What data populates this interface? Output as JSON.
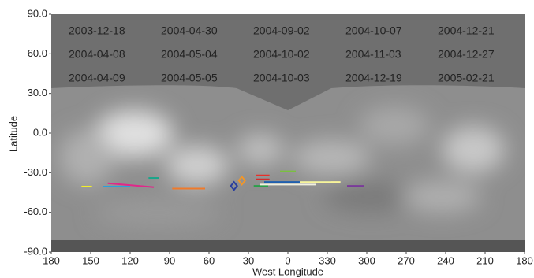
{
  "chart_data": {
    "type": "line",
    "xlabel": "West Longitude",
    "ylabel": "Latitude",
    "xlim": [
      180,
      -180
    ],
    "xticks": [
      180,
      150,
      120,
      90,
      60,
      30,
      0,
      {
        "value": -30,
        "label": "330"
      },
      {
        "value": -60,
        "label": "300"
      },
      {
        "value": -90,
        "label": "270"
      },
      {
        "value": -120,
        "label": "240"
      },
      {
        "value": -150,
        "label": "210"
      },
      {
        "value": -180,
        "label": "180"
      }
    ],
    "ylim": [
      -90,
      90
    ],
    "yticks": [
      {
        "value": -90,
        "label": "-90.0"
      },
      {
        "value": -60,
        "label": "-60.0"
      },
      {
        "value": -30,
        "label": "-30.0"
      },
      {
        "value": 0,
        "label": "0.0"
      },
      {
        "value": 30,
        "label": "30.0"
      },
      {
        "value": 60,
        "label": "60.0"
      },
      {
        "value": 90,
        "label": "90.0"
      }
    ],
    "series": [
      {
        "name": "2003-12-18",
        "color": "#d42a2a",
        "x": [
          24,
          14
        ],
        "values": [
          -35,
          -35
        ]
      },
      {
        "name": "2004-04-30",
        "color": "#f2ee2a",
        "x": [
          157,
          149
        ],
        "values": [
          -40.5,
          -40.5
        ]
      },
      {
        "name": "2004-09-02",
        "color": "#f07a2a",
        "x": [
          88,
          63
        ],
        "values": [
          -42,
          -42
        ]
      },
      {
        "name": "2004-10-07",
        "color": "#1aa58a",
        "x": [
          106,
          98
        ],
        "values": [
          -34,
          -34
        ]
      },
      {
        "name": "2004-12-21",
        "color": "#1f5fae",
        "x": [
          18,
          -33
        ],
        "values": [
          -37,
          -37
        ]
      },
      {
        "name": "2004-04-08",
        "color": "#2aa04a",
        "x": [
          26,
          15
        ],
        "values": [
          -40,
          -40
        ]
      },
      {
        "name": "2004-05-04",
        "color": "#e0288a",
        "x": [
          137,
          102
        ],
        "values": [
          -38,
          -41
        ]
      },
      {
        "name": "2004-10-02",
        "color": "#e8302a",
        "x": [
          24,
          14
        ],
        "values": [
          -32,
          -32
        ]
      },
      {
        "name": "2004-11-03",
        "color": "#7a3a9a",
        "x": [
          -45,
          -58
        ],
        "values": [
          -40,
          -40
        ]
      },
      {
        "name": "2004-12-27",
        "color": "#f0962a",
        "x": [
          35
        ],
        "values": [
          -36
        ]
      },
      {
        "name": "2004-04-09",
        "color": "#2a3e9e",
        "x": [
          41
        ],
        "values": [
          -40
        ]
      },
      {
        "name": "2004-05-05",
        "color": "#2aa0dc",
        "x": [
          141,
          120
        ],
        "values": [
          -40.5,
          -40.5
        ]
      },
      {
        "name": "2004-10-03",
        "color": "#7ac040",
        "x": [
          6,
          -6
        ],
        "values": [
          -29,
          -29
        ]
      },
      {
        "name": "2004-12-19",
        "color": "#f0f0e0",
        "x": [
          21,
          -21
        ],
        "values": [
          -39,
          -39
        ]
      },
      {
        "name": "2005-02-21",
        "color": "#f8f49a",
        "x": [
          -9,
          -40
        ],
        "values": [
          -37,
          -37
        ]
      }
    ]
  }
}
